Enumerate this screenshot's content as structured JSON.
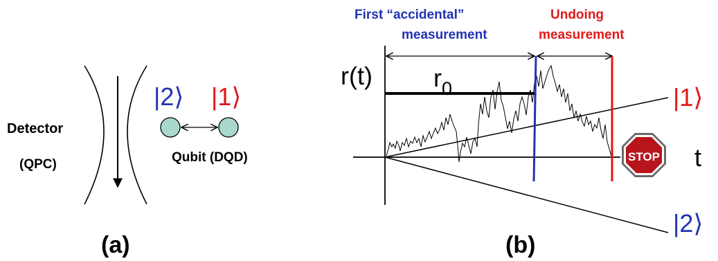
{
  "panel_a": {
    "detector_label": "Detector",
    "qpc_label": "(QPC)",
    "state_2_label": "|2⟩",
    "state_1_label": "|1⟩",
    "qubit_label": "Qubit (DQD)",
    "caption": "(a)"
  },
  "panel_b": {
    "first_measurement_line1": "First “accidental”",
    "first_measurement_line2": "measurement",
    "undoing_line1": "Undoing",
    "undoing_line2": "measurement",
    "y_axis_label": "r(t)",
    "r0_label": "r",
    "r0_subscript": "0",
    "state_1_label": "|1⟩",
    "state_2_label": "|2⟩",
    "stop_sign_text": "STOP",
    "t_axis_label": "t",
    "caption": "(b)"
  },
  "colors": {
    "blue": "#2233b0",
    "red": "#e01818",
    "qubit_fill": "#a8d8d0",
    "stop_red": "#b8141c"
  }
}
